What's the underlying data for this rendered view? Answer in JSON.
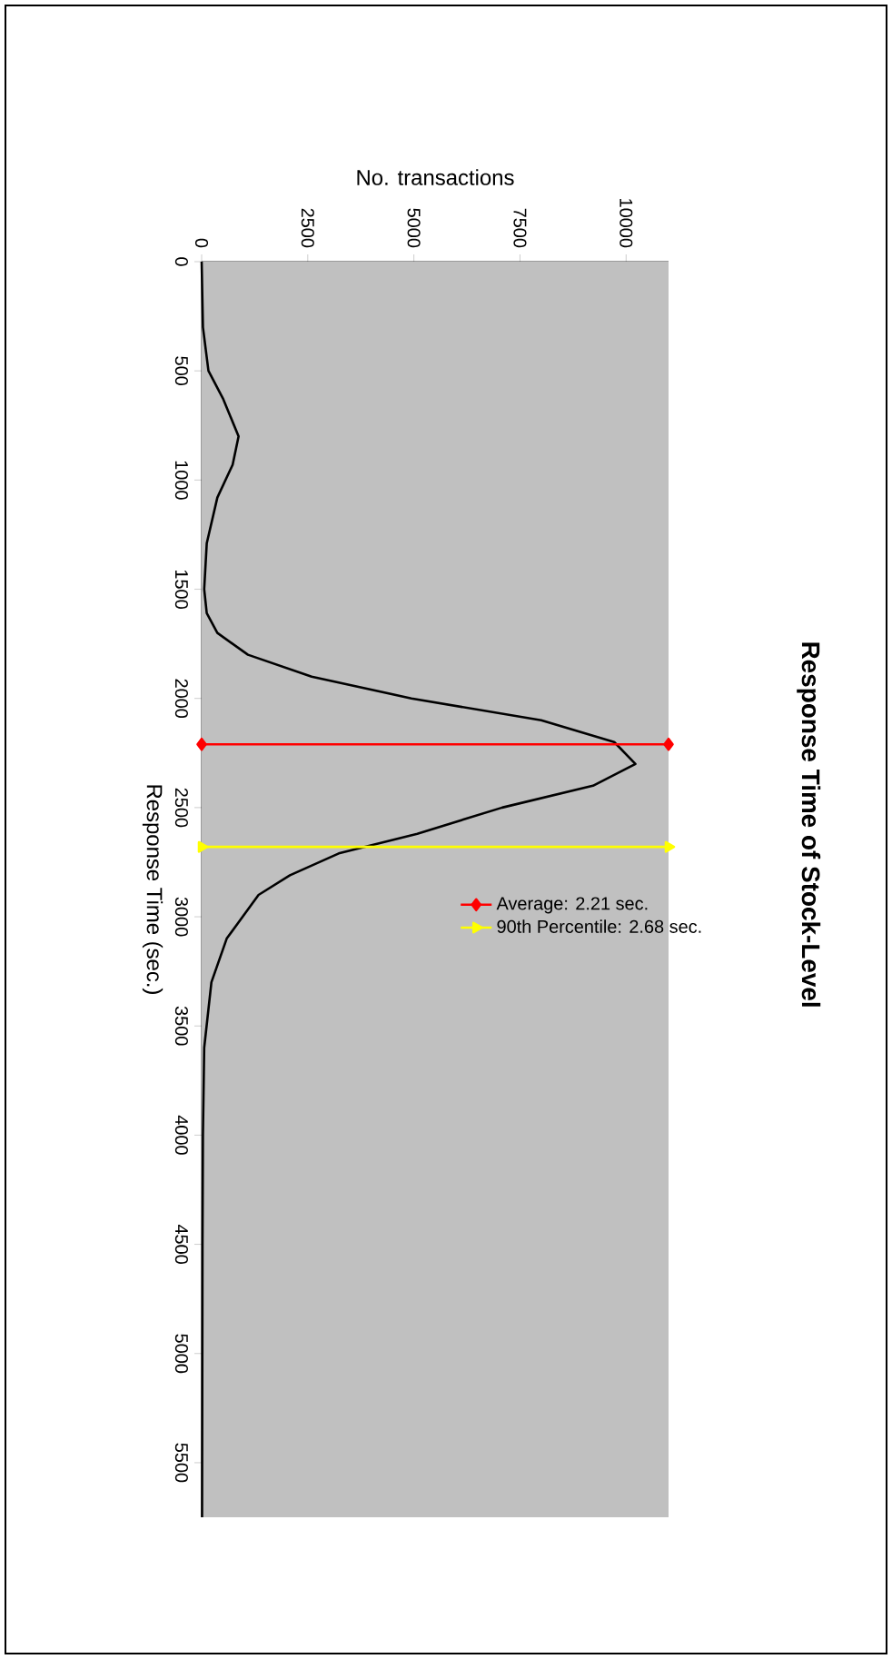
{
  "chart_data": {
    "type": "line",
    "title": "Response Time of Stock-Level",
    "xlabel": "No. transactions",
    "ylabel": "Response Time (sec.)",
    "series": [
      {
        "color": "#000000",
        "marker": "none",
        "x": [
          0,
          30,
          160,
          510,
          870,
          730,
          370,
          120,
          60,
          120,
          370,
          1090,
          2590,
          4940,
          8000,
          9720,
          10220,
          9220,
          7080,
          5080,
          3230,
          2080,
          1340,
          590,
          230,
          60,
          30,
          20,
          10
        ],
        "values": [
          0,
          300,
          500,
          630,
          800,
          930,
          1080,
          1290,
          1500,
          1610,
          1700,
          1800,
          1900,
          2000,
          2100,
          2200,
          2300,
          2400,
          2500,
          2620,
          2710,
          2810,
          2900,
          3100,
          3300,
          3600,
          4000,
          4500,
          5750
        ]
      },
      {
        "name": "Average: 2.21 sec.",
        "color": "#ff0000",
        "marker": "diamond",
        "x": [
          0,
          11000
        ],
        "values": [
          2210,
          2210
        ]
      },
      {
        "name": "90th Percentile: 2.68 sec.",
        "color": "#ffff00",
        "marker": "triangle",
        "x": [
          0,
          11000
        ],
        "values": [
          2680,
          2680
        ]
      }
    ],
    "xlim": [
      0,
      11000
    ],
    "xticks": [
      0,
      2500,
      5000,
      7500,
      10000
    ],
    "ylim": [
      5750,
      0
    ],
    "yticks": [
      0,
      500,
      1000,
      1500,
      2000,
      2500,
      3000,
      3500,
      4000,
      4500,
      5000,
      5500
    ],
    "grid": false,
    "legend": "center",
    "line_style": "solid"
  }
}
